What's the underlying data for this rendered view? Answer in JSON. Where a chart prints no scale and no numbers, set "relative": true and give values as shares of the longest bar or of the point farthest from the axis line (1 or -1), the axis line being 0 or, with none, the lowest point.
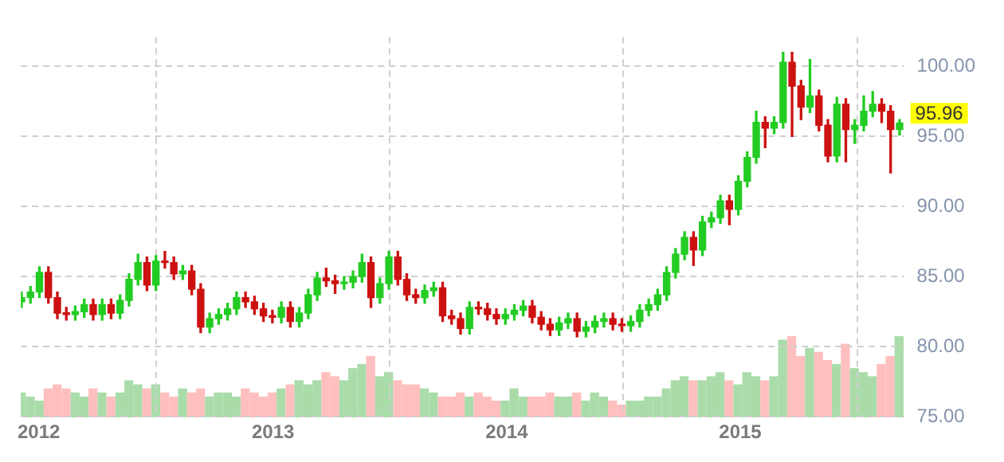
{
  "chart_data": [
    {
      "type": "candlestick",
      "x": [
        "2011-12-05",
        "2011-12-19",
        "2012-01-02",
        "2012-01-16",
        "2012-01-30",
        "2012-02-13",
        "2012-02-27",
        "2012-03-12",
        "2012-03-26",
        "2012-04-09",
        "2012-04-23",
        "2012-05-07",
        "2012-05-21",
        "2012-06-04",
        "2012-06-18",
        "2012-07-02",
        "2012-07-16",
        "2012-07-30",
        "2012-08-13",
        "2012-08-27",
        "2012-09-10",
        "2012-09-24",
        "2012-10-08",
        "2012-10-22",
        "2012-11-05",
        "2012-11-19",
        "2012-12-03",
        "2012-12-17",
        "2012-12-31",
        "2013-01-14",
        "2013-01-28",
        "2013-02-11",
        "2013-02-25",
        "2013-03-11",
        "2013-03-25",
        "2013-04-08",
        "2013-04-22",
        "2013-05-06",
        "2013-05-20",
        "2013-06-03",
        "2013-06-17",
        "2013-07-01",
        "2013-07-15",
        "2013-07-29",
        "2013-08-12",
        "2013-08-26",
        "2013-09-09",
        "2013-09-23",
        "2013-10-07",
        "2013-10-21",
        "2013-11-04",
        "2013-11-18",
        "2013-12-02",
        "2013-12-16",
        "2013-12-30",
        "2014-01-13",
        "2014-01-27",
        "2014-02-10",
        "2014-02-24",
        "2014-03-10",
        "2014-03-24",
        "2014-04-07",
        "2014-04-21",
        "2014-05-05",
        "2014-05-19",
        "2014-06-02",
        "2014-06-16",
        "2014-06-30",
        "2014-07-14",
        "2014-07-28",
        "2014-08-11",
        "2014-08-25",
        "2014-09-08",
        "2014-09-22",
        "2014-10-06",
        "2014-10-20",
        "2014-11-03",
        "2014-11-17",
        "2014-12-01",
        "2014-12-15",
        "2014-12-29",
        "2015-01-12",
        "2015-01-26",
        "2015-02-09",
        "2015-02-23",
        "2015-03-09",
        "2015-03-23",
        "2015-04-06",
        "2015-04-20",
        "2015-05-04",
        "2015-05-18",
        "2015-06-01",
        "2015-06-15",
        "2015-06-29",
        "2015-07-13",
        "2015-07-27",
        "2015-08-10",
        "2015-08-24",
        "2015-09-07"
      ],
      "ohlc": [
        [
          83.2,
          83.9,
          82.8,
          83.5
        ],
        [
          83.5,
          84.3,
          83.1,
          83.9
        ],
        [
          83.9,
          85.7,
          83.5,
          85.3
        ],
        [
          85.3,
          85.7,
          83.1,
          83.5
        ],
        [
          83.5,
          83.9,
          82.0,
          82.4
        ],
        [
          82.4,
          82.8,
          81.9,
          82.3
        ],
        [
          82.3,
          82.9,
          81.9,
          82.5
        ],
        [
          82.5,
          83.4,
          82.1,
          83.0
        ],
        [
          83.0,
          83.4,
          81.9,
          82.3
        ],
        [
          82.3,
          83.4,
          81.9,
          83.0
        ],
        [
          83.0,
          83.4,
          82.0,
          82.4
        ],
        [
          82.4,
          83.7,
          82.0,
          83.3
        ],
        [
          83.3,
          85.2,
          82.9,
          84.8
        ],
        [
          84.8,
          86.6,
          84.4,
          86.0
        ],
        [
          86.0,
          86.4,
          84.0,
          84.4
        ],
        [
          84.4,
          86.5,
          84.0,
          86.1
        ],
        [
          86.1,
          86.8,
          85.6,
          86.0
        ],
        [
          86.0,
          86.4,
          84.8,
          85.2
        ],
        [
          85.2,
          85.8,
          84.8,
          85.4
        ],
        [
          85.4,
          85.8,
          83.7,
          84.1
        ],
        [
          84.1,
          84.5,
          81.0,
          81.4
        ],
        [
          81.4,
          82.4,
          81.0,
          82.0
        ],
        [
          82.0,
          82.7,
          81.6,
          82.3
        ],
        [
          82.3,
          83.1,
          81.9,
          82.7
        ],
        [
          82.7,
          83.9,
          82.3,
          83.5
        ],
        [
          83.5,
          83.9,
          82.8,
          83.2
        ],
        [
          83.2,
          83.6,
          82.3,
          82.7
        ],
        [
          82.7,
          83.1,
          81.8,
          82.2
        ],
        [
          82.2,
          82.6,
          81.7,
          82.1
        ],
        [
          82.1,
          83.2,
          81.7,
          82.8
        ],
        [
          82.8,
          83.2,
          81.4,
          81.8
        ],
        [
          81.8,
          82.8,
          81.4,
          82.4
        ],
        [
          82.4,
          84.1,
          82.0,
          83.7
        ],
        [
          83.7,
          85.3,
          83.3,
          84.9
        ],
        [
          84.9,
          85.6,
          84.3,
          84.7
        ],
        [
          84.7,
          85.1,
          83.8,
          84.5
        ],
        [
          84.5,
          85.0,
          84.1,
          84.6
        ],
        [
          84.6,
          85.4,
          84.2,
          85.0
        ],
        [
          85.0,
          86.6,
          84.6,
          86.0
        ],
        [
          86.0,
          86.4,
          82.8,
          83.5
        ],
        [
          83.5,
          84.9,
          83.1,
          84.5
        ],
        [
          84.5,
          86.8,
          84.1,
          86.4
        ],
        [
          86.4,
          86.8,
          84.4,
          84.8
        ],
        [
          84.8,
          85.2,
          83.3,
          83.7
        ],
        [
          83.7,
          84.1,
          83.1,
          83.5
        ],
        [
          83.5,
          84.4,
          83.1,
          84.0
        ],
        [
          84.0,
          84.6,
          83.6,
          84.2
        ],
        [
          84.2,
          84.6,
          81.8,
          82.2
        ],
        [
          82.2,
          82.6,
          81.6,
          82.0
        ],
        [
          82.0,
          82.4,
          80.9,
          81.3
        ],
        [
          81.3,
          83.2,
          80.9,
          82.8
        ],
        [
          82.8,
          83.2,
          82.3,
          82.7
        ],
        [
          82.7,
          83.1,
          81.9,
          82.3
        ],
        [
          82.3,
          82.7,
          81.6,
          82.0
        ],
        [
          82.0,
          82.7,
          81.6,
          82.3
        ],
        [
          82.3,
          83.0,
          81.9,
          82.6
        ],
        [
          82.6,
          83.3,
          82.2,
          82.9
        ],
        [
          82.9,
          83.3,
          81.7,
          82.1
        ],
        [
          82.1,
          82.5,
          81.2,
          81.6
        ],
        [
          81.6,
          82.0,
          80.8,
          81.2
        ],
        [
          81.2,
          82.1,
          80.8,
          81.7
        ],
        [
          81.7,
          82.4,
          81.3,
          82.0
        ],
        [
          82.0,
          82.4,
          80.7,
          81.1
        ],
        [
          81.1,
          81.8,
          80.7,
          81.4
        ],
        [
          81.4,
          82.2,
          81.0,
          81.8
        ],
        [
          81.8,
          82.4,
          81.4,
          82.0
        ],
        [
          82.0,
          82.4,
          81.2,
          81.6
        ],
        [
          81.6,
          82.0,
          81.1,
          81.5
        ],
        [
          81.5,
          82.2,
          81.1,
          81.8
        ],
        [
          81.8,
          83.0,
          81.4,
          82.6
        ],
        [
          82.6,
          83.4,
          82.2,
          83.0
        ],
        [
          83.0,
          84.1,
          82.6,
          83.7
        ],
        [
          83.7,
          85.7,
          83.3,
          85.3
        ],
        [
          85.3,
          87.0,
          84.9,
          86.6
        ],
        [
          86.6,
          88.2,
          86.2,
          87.8
        ],
        [
          87.8,
          88.2,
          85.8,
          86.9
        ],
        [
          86.9,
          89.3,
          86.5,
          88.9
        ],
        [
          88.9,
          89.6,
          88.5,
          89.2
        ],
        [
          89.2,
          90.8,
          88.8,
          90.4
        ],
        [
          90.4,
          90.8,
          88.7,
          89.8
        ],
        [
          89.8,
          92.2,
          89.4,
          91.8
        ],
        [
          91.8,
          93.9,
          91.4,
          93.5
        ],
        [
          93.5,
          96.8,
          93.1,
          96.0
        ],
        [
          96.0,
          96.4,
          94.2,
          95.6
        ],
        [
          95.6,
          96.4,
          95.2,
          96.0
        ],
        [
          96.0,
          101.0,
          95.6,
          100.3
        ],
        [
          100.3,
          101.0,
          95.0,
          98.6
        ],
        [
          98.6,
          99.0,
          96.2,
          97.1
        ],
        [
          97.1,
          100.5,
          96.7,
          97.9
        ],
        [
          97.9,
          98.3,
          95.4,
          95.8
        ],
        [
          95.8,
          96.2,
          93.2,
          93.6
        ],
        [
          93.6,
          97.8,
          93.2,
          97.3
        ],
        [
          97.3,
          97.7,
          93.2,
          95.5
        ],
        [
          95.5,
          96.2,
          94.5,
          95.8
        ],
        [
          95.8,
          97.9,
          95.4,
          96.8
        ],
        [
          96.8,
          98.2,
          96.4,
          97.3
        ],
        [
          97.3,
          97.7,
          96.0,
          96.8
        ],
        [
          96.8,
          97.2,
          92.4,
          95.5
        ],
        [
          95.5,
          96.2,
          95.1,
          95.96
        ]
      ],
      "colors": [
        "#22cc22",
        "#22cc22",
        "#22cc22",
        "#cc1111",
        "#cc1111",
        "#cc1111",
        "#22cc22",
        "#22cc22",
        "#cc1111",
        "#22cc22",
        "#cc1111",
        "#22cc22",
        "#22cc22",
        "#22cc22",
        "#cc1111",
        "#22cc22",
        "#cc1111",
        "#cc1111",
        "#22cc22",
        "#cc1111",
        "#cc1111",
        "#22cc22",
        "#22cc22",
        "#22cc22",
        "#22cc22",
        "#cc1111",
        "#cc1111",
        "#cc1111",
        "#cc1111",
        "#22cc22",
        "#cc1111",
        "#22cc22",
        "#22cc22",
        "#22cc22",
        "#cc1111",
        "#cc1111",
        "#22cc22",
        "#22cc22",
        "#22cc22",
        "#cc1111",
        "#22cc22",
        "#22cc22",
        "#cc1111",
        "#cc1111",
        "#cc1111",
        "#22cc22",
        "#22cc22",
        "#cc1111",
        "#cc1111",
        "#cc1111",
        "#22cc22",
        "#cc1111",
        "#cc1111",
        "#cc1111",
        "#22cc22",
        "#22cc22",
        "#22cc22",
        "#cc1111",
        "#cc1111",
        "#cc1111",
        "#22cc22",
        "#22cc22",
        "#cc1111",
        "#22cc22",
        "#22cc22",
        "#22cc22",
        "#cc1111",
        "#cc1111",
        "#22cc22",
        "#22cc22",
        "#22cc22",
        "#22cc22",
        "#22cc22",
        "#22cc22",
        "#22cc22",
        "#cc1111",
        "#22cc22",
        "#22cc22",
        "#22cc22",
        "#cc1111",
        "#22cc22",
        "#22cc22",
        "#22cc22",
        "#cc1111",
        "#22cc22",
        "#22cc22",
        "#cc1111",
        "#cc1111",
        "#22cc22",
        "#cc1111",
        "#cc1111",
        "#22cc22",
        "#cc1111",
        "#22cc22",
        "#22cc22",
        "#22cc22",
        "#cc1111",
        "#cc1111",
        "#22cc22"
      ],
      "xlim": [
        "2011-12-04",
        "2015-09-14"
      ],
      "xticks": [
        "2012",
        "2013",
        "2014",
        "2015"
      ],
      "ylim": [
        75,
        102.1
      ],
      "yticks": [
        {
          "value": 75,
          "label": "75.00"
        },
        {
          "value": 80,
          "label": "80.00"
        },
        {
          "value": 85,
          "label": "85.00"
        },
        {
          "value": 90,
          "label": "90.00"
        },
        {
          "value": 95,
          "label": "95.00"
        },
        {
          "value": 100,
          "label": "100.00"
        }
      ],
      "grid": true,
      "annotations": [
        "95.96"
      ]
    },
    {
      "type": "bar",
      "relative": true,
      "x": [
        "2011-12-05",
        "2011-12-19",
        "2012-01-02",
        "2012-01-16",
        "2012-01-30",
        "2012-02-13",
        "2012-02-27",
        "2012-03-12",
        "2012-03-26",
        "2012-04-09",
        "2012-04-23",
        "2012-05-07",
        "2012-05-21",
        "2012-06-04",
        "2012-06-18",
        "2012-07-02",
        "2012-07-16",
        "2012-07-30",
        "2012-08-13",
        "2012-08-27",
        "2012-09-10",
        "2012-09-24",
        "2012-10-08",
        "2012-10-22",
        "2012-11-05",
        "2012-11-19",
        "2012-12-03",
        "2012-12-17",
        "2012-12-31",
        "2013-01-14",
        "2013-01-28",
        "2013-02-11",
        "2013-02-25",
        "2013-03-11",
        "2013-03-25",
        "2013-04-08",
        "2013-04-22",
        "2013-05-06",
        "2013-05-20",
        "2013-06-03",
        "2013-06-17",
        "2013-07-01",
        "2013-07-15",
        "2013-07-29",
        "2013-08-12",
        "2013-08-26",
        "2013-09-09",
        "2013-09-23",
        "2013-10-07",
        "2013-10-21",
        "2013-11-04",
        "2013-11-18",
        "2013-12-02",
        "2013-12-16",
        "2013-12-30",
        "2014-01-13",
        "2014-01-27",
        "2014-02-10",
        "2014-02-24",
        "2014-03-10",
        "2014-03-24",
        "2014-04-07",
        "2014-04-21",
        "2014-05-05",
        "2014-05-19",
        "2014-06-02",
        "2014-06-16",
        "2014-06-30",
        "2014-07-14",
        "2014-07-28",
        "2014-08-11",
        "2014-08-25",
        "2014-09-08",
        "2014-09-22",
        "2014-10-06",
        "2014-10-20",
        "2014-11-03",
        "2014-11-17",
        "2014-12-01",
        "2014-12-15",
        "2014-12-29",
        "2015-01-12",
        "2015-01-26",
        "2015-02-09",
        "2015-02-23",
        "2015-03-09",
        "2015-03-23",
        "2015-04-06",
        "2015-04-20",
        "2015-05-04",
        "2015-05-18",
        "2015-06-01",
        "2015-06-15",
        "2015-06-29",
        "2015-07-13",
        "2015-07-27",
        "2015-08-10",
        "2015-08-24",
        "2015-09-07"
      ],
      "xlim": [
        "2011-12-04",
        "2015-09-14"
      ],
      "values": [
        0.3,
        0.25,
        0.2,
        0.35,
        0.4,
        0.35,
        0.3,
        0.25,
        0.35,
        0.3,
        0.25,
        0.3,
        0.45,
        0.4,
        0.35,
        0.4,
        0.3,
        0.25,
        0.35,
        0.3,
        0.35,
        0.25,
        0.3,
        0.3,
        0.25,
        0.35,
        0.3,
        0.25,
        0.3,
        0.35,
        0.4,
        0.45,
        0.4,
        0.45,
        0.55,
        0.5,
        0.45,
        0.6,
        0.65,
        0.75,
        0.5,
        0.55,
        0.45,
        0.4,
        0.4,
        0.35,
        0.3,
        0.25,
        0.25,
        0.3,
        0.25,
        0.3,
        0.25,
        0.2,
        0.2,
        0.35,
        0.25,
        0.25,
        0.25,
        0.3,
        0.25,
        0.25,
        0.3,
        0.2,
        0.3,
        0.25,
        0.2,
        0.15,
        0.2,
        0.2,
        0.25,
        0.25,
        0.35,
        0.45,
        0.5,
        0.45,
        0.45,
        0.5,
        0.55,
        0.45,
        0.4,
        0.55,
        0.5,
        0.45,
        0.5,
        0.95,
        1.0,
        0.75,
        0.85,
        0.8,
        0.7,
        0.65,
        0.9,
        0.6,
        0.55,
        0.5,
        0.65,
        0.75,
        1.0
      ],
      "colors": [
        "#aadcaa",
        "#aadcaa",
        "#aadcaa",
        "#ffbfbf",
        "#ffbfbf",
        "#ffbfbf",
        "#aadcaa",
        "#aadcaa",
        "#ffbfbf",
        "#aadcaa",
        "#ffbfbf",
        "#aadcaa",
        "#aadcaa",
        "#aadcaa",
        "#ffbfbf",
        "#aadcaa",
        "#ffbfbf",
        "#ffbfbf",
        "#aadcaa",
        "#ffbfbf",
        "#ffbfbf",
        "#aadcaa",
        "#aadcaa",
        "#aadcaa",
        "#aadcaa",
        "#ffbfbf",
        "#ffbfbf",
        "#ffbfbf",
        "#ffbfbf",
        "#aadcaa",
        "#ffbfbf",
        "#aadcaa",
        "#aadcaa",
        "#aadcaa",
        "#ffbfbf",
        "#ffbfbf",
        "#aadcaa",
        "#aadcaa",
        "#aadcaa",
        "#ffbfbf",
        "#aadcaa",
        "#aadcaa",
        "#ffbfbf",
        "#ffbfbf",
        "#ffbfbf",
        "#aadcaa",
        "#aadcaa",
        "#ffbfbf",
        "#ffbfbf",
        "#ffbfbf",
        "#aadcaa",
        "#ffbfbf",
        "#ffbfbf",
        "#ffbfbf",
        "#aadcaa",
        "#aadcaa",
        "#aadcaa",
        "#ffbfbf",
        "#ffbfbf",
        "#ffbfbf",
        "#aadcaa",
        "#aadcaa",
        "#ffbfbf",
        "#aadcaa",
        "#aadcaa",
        "#aadcaa",
        "#ffbfbf",
        "#ffbfbf",
        "#aadcaa",
        "#aadcaa",
        "#aadcaa",
        "#aadcaa",
        "#aadcaa",
        "#aadcaa",
        "#aadcaa",
        "#ffbfbf",
        "#aadcaa",
        "#aadcaa",
        "#aadcaa",
        "#ffbfbf",
        "#aadcaa",
        "#aadcaa",
        "#aadcaa",
        "#ffbfbf",
        "#aadcaa",
        "#aadcaa",
        "#ffbfbf",
        "#ffbfbf",
        "#aadcaa",
        "#ffbfbf",
        "#ffbfbf",
        "#aadcaa",
        "#ffbfbf",
        "#aadcaa",
        "#aadcaa",
        "#aadcaa",
        "#ffbfbf",
        "#ffbfbf",
        "#aadcaa"
      ]
    }
  ]
}
